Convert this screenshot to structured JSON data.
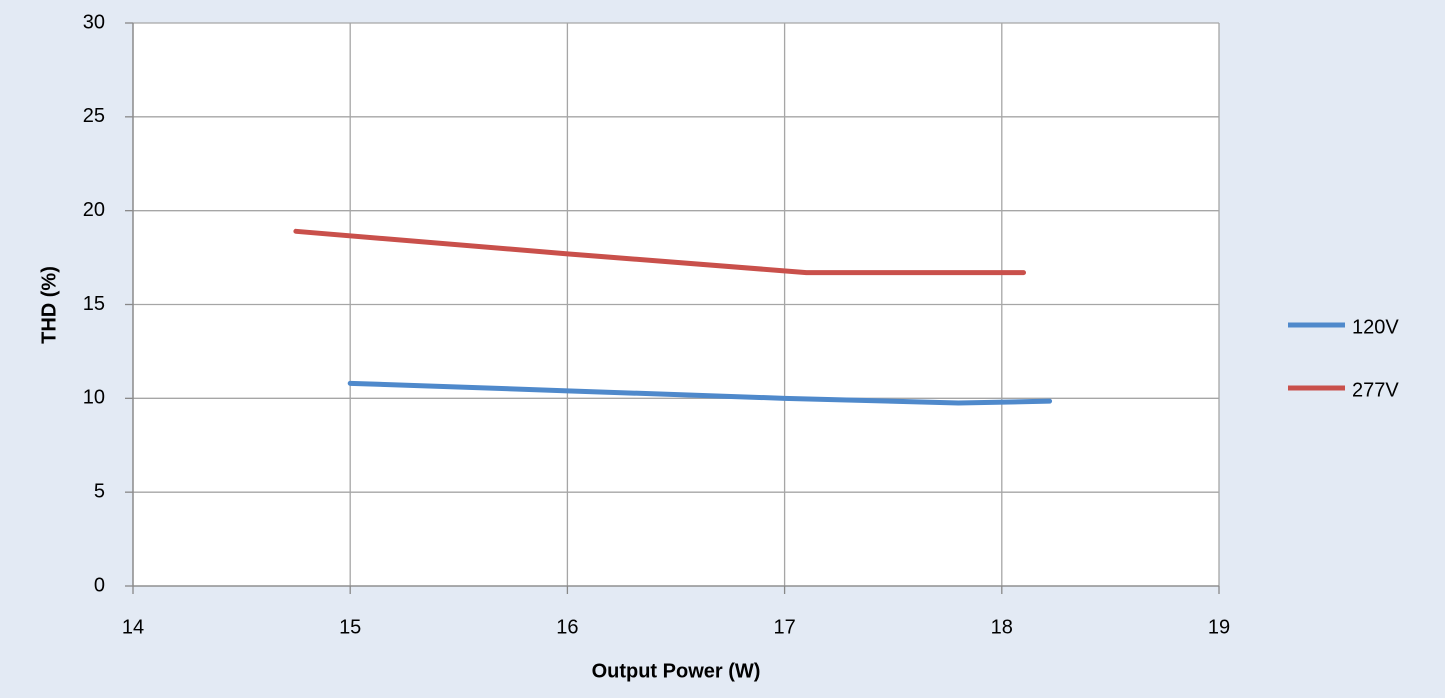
{
  "chart_data": {
    "type": "line",
    "x_label": "Output Power (W)",
    "y_label": "THD (%)",
    "series": [
      {
        "name": "120V",
        "color": "#4f89cb",
        "x": [
          15.0,
          16.0,
          17.0,
          17.8,
          18.22
        ],
        "values": [
          10.8,
          10.4,
          10.0,
          9.75,
          9.85
        ]
      },
      {
        "name": "277V",
        "color": "#c9504b",
        "x": [
          14.75,
          16.0,
          17.1,
          18.1
        ],
        "values": [
          18.9,
          17.7,
          16.7,
          16.7
        ]
      }
    ],
    "xlim": [
      14,
      19
    ],
    "xticks": [
      14,
      15,
      16,
      17,
      18,
      19
    ],
    "ylim": [
      0,
      30
    ],
    "yticks": [
      0,
      5,
      10,
      15,
      20,
      25,
      30
    ],
    "grid": true,
    "legend": "right"
  }
}
